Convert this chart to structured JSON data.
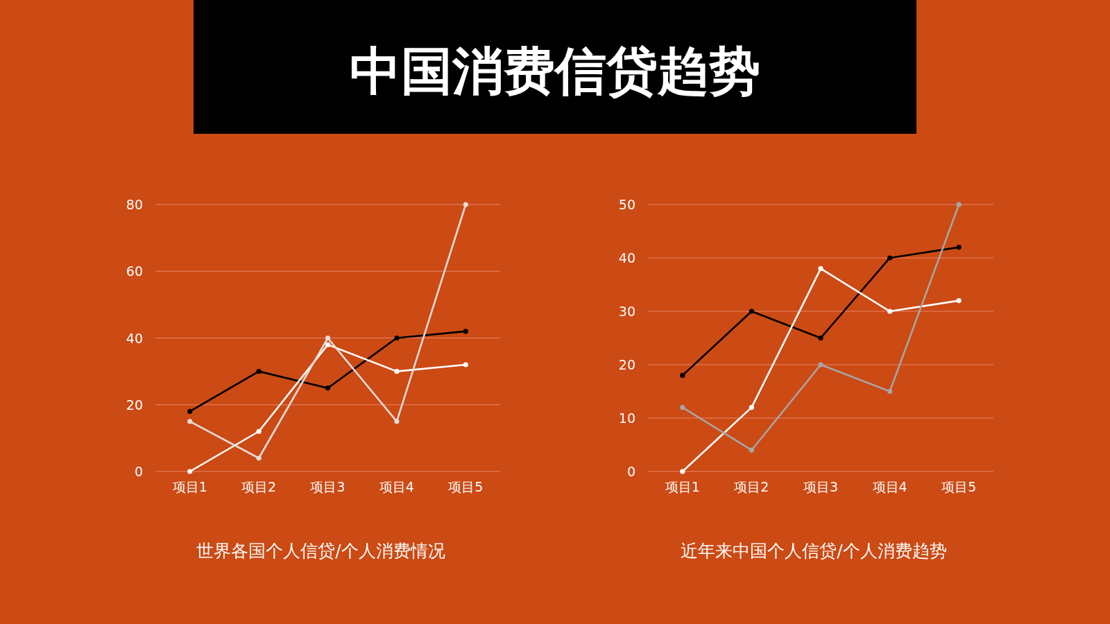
{
  "chart_data": [
    {
      "type": "other",
      "title": "中国消费信贷趋势"
    },
    {
      "type": "line",
      "title": "世界各国个人信贷/个人消费情况",
      "categories": [
        "项目1",
        "项目2",
        "项目3",
        "项目4",
        "项目5"
      ],
      "ylim": [
        0,
        80
      ],
      "yticks": [
        0,
        20,
        40,
        60,
        80
      ],
      "grid": "y",
      "marker": "circle",
      "series": [
        {
          "color": "#000000",
          "values": [
            18,
            30,
            25,
            40,
            42
          ]
        },
        {
          "color": "#ffffff",
          "values": [
            0,
            12,
            38,
            30,
            32
          ]
        },
        {
          "color": "#e6dcd8",
          "values": [
            15,
            4,
            40,
            15,
            80
          ]
        }
      ]
    },
    {
      "type": "line",
      "title": "近年来中国个人信贷/个人消费趋势",
      "categories": [
        "项目1",
        "项目2",
        "项目3",
        "项目4",
        "项目5"
      ],
      "ylim": [
        0,
        50
      ],
      "yticks": [
        0,
        10,
        20,
        30,
        40,
        50
      ],
      "grid": "y",
      "marker": "circle",
      "series": [
        {
          "color": "#000000",
          "values": [
            18,
            30,
            25,
            40,
            42
          ]
        },
        {
          "color": "#ffffff",
          "values": [
            0,
            12,
            38,
            30,
            32
          ]
        },
        {
          "color": "#a6a6a6",
          "values": [
            12,
            4,
            20,
            15,
            50
          ]
        }
      ]
    }
  ]
}
